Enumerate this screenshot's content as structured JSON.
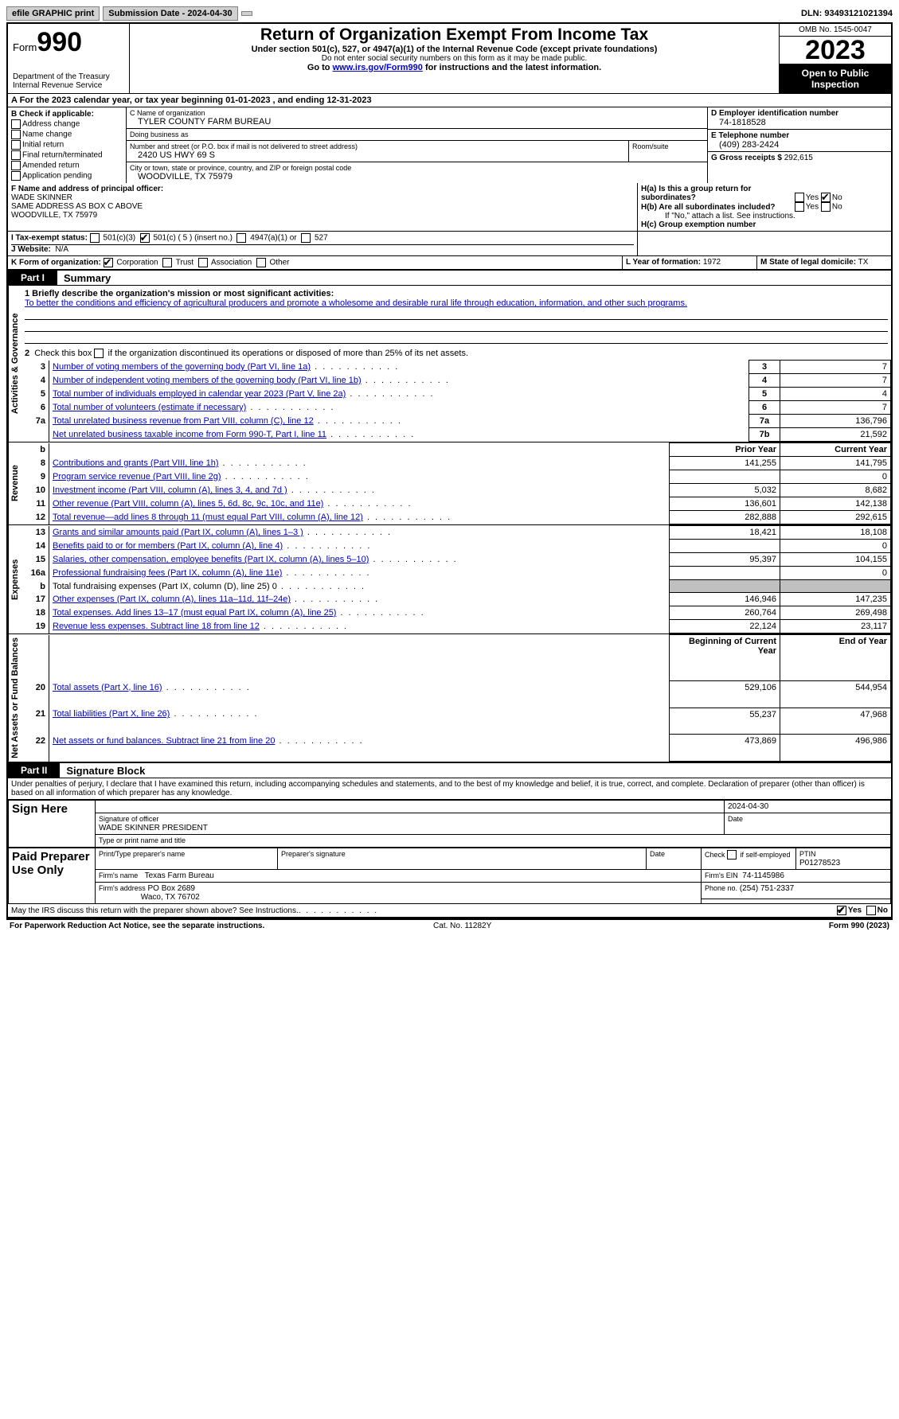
{
  "topbar": {
    "efile": "efile GRAPHIC print",
    "submission": "Submission Date - 2024-04-30",
    "dln": "DLN: 93493121021394"
  },
  "header": {
    "form_prefix": "Form",
    "form_num": "990",
    "dept": "Department of the Treasury",
    "irs": "Internal Revenue Service",
    "title": "Return of Organization Exempt From Income Tax",
    "sub": "Under section 501(c), 527, or 4947(a)(1) of the Internal Revenue Code (except private foundations)",
    "warn": "Do not enter social security numbers on this form as it may be made public.",
    "goto_pre": "Go to ",
    "goto_link": "www.irs.gov/Form990",
    "goto_post": " for instructions and the latest information.",
    "omb": "OMB No. 1545-0047",
    "year": "2023",
    "open": "Open to Public Inspection"
  },
  "row_a": "A  For the 2023 calendar year, or tax year beginning 01-01-2023    , and ending 12-31-2023",
  "box_b": {
    "title": "B Check if applicable:",
    "items": [
      "Address change",
      "Name change",
      "Initial return",
      "Final return/terminated",
      "Amended return",
      "Application pending"
    ]
  },
  "box_c": {
    "name_lbl": "C Name of organization",
    "name": "TYLER COUNTY FARM BUREAU",
    "dba_lbl": "Doing business as",
    "dba": "",
    "addr_lbl": "Number and street (or P.O. box if mail is not delivered to street address)",
    "room_lbl": "Room/suite",
    "addr": "2420 US HWY 69 S",
    "city_lbl": "City or town, state or province, country, and ZIP or foreign postal code",
    "city": "WOODVILLE, TX  75979"
  },
  "box_d": {
    "ein_lbl": "D Employer identification number",
    "ein": "74-1818528",
    "tel_lbl": "E Telephone number",
    "tel": "(409) 283-2424",
    "gross_lbl": "G Gross receipts $",
    "gross": "292,615"
  },
  "box_f": {
    "lbl": "F Name and address of principal officer:",
    "name": "WADE SKINNER",
    "addr1": "SAME ADDRESS AS BOX C ABOVE",
    "addr2": "WOODVILLE, TX  75979"
  },
  "box_h": {
    "ha": "H(a)  Is this a group return for subordinates?",
    "hb": "H(b)  Are all subordinates included?",
    "hb_note": "If \"No,\" attach a list. See instructions.",
    "hc": "H(c)  Group exemption number",
    "yes": "Yes",
    "no": "No"
  },
  "row_i": {
    "lbl": "I    Tax-exempt status:",
    "o1": "501(c)(3)",
    "o2": "501(c) ( 5 ) (insert no.)",
    "o3": "4947(a)(1) or",
    "o4": "527"
  },
  "row_j": {
    "lbl": "J    Website:",
    "val": "N/A"
  },
  "row_k": {
    "lbl": "K Form of organization:",
    "opts": [
      "Corporation",
      "Trust",
      "Association",
      "Other"
    ]
  },
  "row_l": {
    "lbl": "L Year of formation:",
    "val": "1972"
  },
  "row_m": {
    "lbl": "M State of legal domicile:",
    "val": "TX"
  },
  "part1": {
    "tab": "Part I",
    "title": "Summary"
  },
  "mission": {
    "lbl": "1   Briefly describe the organization's mission or most significant activities:",
    "text": "To better the conditions and efficiency of agricultural producers and promote a wholesome and desirable rural life through education, information, and other such programs."
  },
  "line2": "2   Check this box          if the organization discontinued its operations or disposed of more than 25% of its net assets.",
  "vert": {
    "gov": "Activities & Governance",
    "rev": "Revenue",
    "exp": "Expenses",
    "net": "Net Assets or Fund Balances"
  },
  "gov_rows": [
    {
      "n": "3",
      "d": "Number of voting members of the governing body (Part VI, line 1a)",
      "b": "3",
      "v": "7"
    },
    {
      "n": "4",
      "d": "Number of independent voting members of the governing body (Part VI, line 1b)",
      "b": "4",
      "v": "7"
    },
    {
      "n": "5",
      "d": "Total number of individuals employed in calendar year 2023 (Part V, line 2a)",
      "b": "5",
      "v": "4"
    },
    {
      "n": "6",
      "d": "Total number of volunteers (estimate if necessary)",
      "b": "6",
      "v": "7"
    },
    {
      "n": "7a",
      "d": "Total unrelated business revenue from Part VIII, column (C), line 12",
      "b": "7a",
      "v": "136,796"
    },
    {
      "n": "",
      "d": "Net unrelated business taxable income from Form 990-T, Part I, line 11",
      "b": "7b",
      "v": "21,592"
    }
  ],
  "col_hdr": {
    "prior": "Prior Year",
    "current": "Current Year"
  },
  "rev_rows": [
    {
      "n": "8",
      "d": "Contributions and grants (Part VIII, line 1h)",
      "p": "141,255",
      "c": "141,795"
    },
    {
      "n": "9",
      "d": "Program service revenue (Part VIII, line 2g)",
      "p": "",
      "c": "0"
    },
    {
      "n": "10",
      "d": "Investment income (Part VIII, column (A), lines 3, 4, and 7d )",
      "p": "5,032",
      "c": "8,682"
    },
    {
      "n": "11",
      "d": "Other revenue (Part VIII, column (A), lines 5, 6d, 8c, 9c, 10c, and 11e)",
      "p": "136,601",
      "c": "142,138"
    },
    {
      "n": "12",
      "d": "Total revenue—add lines 8 through 11 (must equal Part VIII, column (A), line 12)",
      "p": "282,888",
      "c": "292,615"
    }
  ],
  "exp_rows": [
    {
      "n": "13",
      "d": "Grants and similar amounts paid (Part IX, column (A), lines 1–3 )",
      "p": "18,421",
      "c": "18,108"
    },
    {
      "n": "14",
      "d": "Benefits paid to or for members (Part IX, column (A), line 4)",
      "p": "",
      "c": "0"
    },
    {
      "n": "15",
      "d": "Salaries, other compensation, employee benefits (Part IX, column (A), lines 5–10)",
      "p": "95,397",
      "c": "104,155"
    },
    {
      "n": "16a",
      "d": "Professional fundraising fees (Part IX, column (A), line 11e)",
      "p": "",
      "c": "0"
    },
    {
      "n": "b",
      "d": "Total fundraising expenses (Part IX, column (D), line 25) 0",
      "p": "shade",
      "c": "shade"
    },
    {
      "n": "17",
      "d": "Other expenses (Part IX, column (A), lines 11a–11d, 11f–24e)",
      "p": "146,946",
      "c": "147,235"
    },
    {
      "n": "18",
      "d": "Total expenses. Add lines 13–17 (must equal Part IX, column (A), line 25)",
      "p": "260,764",
      "c": "269,498"
    },
    {
      "n": "19",
      "d": "Revenue less expenses. Subtract line 18 from line 12",
      "p": "22,124",
      "c": "23,117"
    }
  ],
  "net_hdr": {
    "begin": "Beginning of Current Year",
    "end": "End of Year"
  },
  "net_rows": [
    {
      "n": "20",
      "d": "Total assets (Part X, line 16)",
      "p": "529,106",
      "c": "544,954"
    },
    {
      "n": "21",
      "d": "Total liabilities (Part X, line 26)",
      "p": "55,237",
      "c": "47,968"
    },
    {
      "n": "22",
      "d": "Net assets or fund balances. Subtract line 21 from line 20",
      "p": "473,869",
      "c": "496,986"
    }
  ],
  "part2": {
    "tab": "Part II",
    "title": "Signature Block"
  },
  "perjury": "Under penalties of perjury, I declare that I have examined this return, including accompanying schedules and statements, and to the best of my knowledge and belief, it is true, correct, and complete. Declaration of preparer (other than officer) is based on all information of which preparer has any knowledge.",
  "sign": {
    "here": "Sign Here",
    "sig_lbl": "Signature of officer",
    "officer": "WADE SKINNER  PRESIDENT",
    "type_lbl": "Type or print name and title",
    "date_lbl": "Date",
    "date": "2024-04-30"
  },
  "paid": {
    "left": "Paid Preparer Use Only",
    "name_lbl": "Print/Type preparer's name",
    "sig_lbl": "Preparer's signature",
    "date_lbl": "Date",
    "check_lbl": "Check        if self-employed",
    "ptin_lbl": "PTIN",
    "ptin": "P01278523",
    "firm_name_lbl": "Firm's name",
    "firm_name": "Texas Farm Bureau",
    "firm_ein_lbl": "Firm's EIN",
    "firm_ein": "74-1145986",
    "firm_addr_lbl": "Firm's address",
    "firm_addr1": "PO Box 2689",
    "firm_addr2": "Waco, TX  76702",
    "phone_lbl": "Phone no.",
    "phone": "(254) 751-2337"
  },
  "discuss": "May the IRS discuss this return with the preparer shown above? See Instructions.",
  "footer": {
    "pra": "For Paperwork Reduction Act Notice, see the separate instructions.",
    "cat": "Cat. No. 11282Y",
    "form": "Form 990 (2023)"
  }
}
